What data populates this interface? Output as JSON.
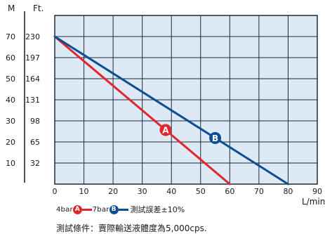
{
  "chart_data": {
    "type": "line",
    "left_axis_unit": "M",
    "right_axis_unit": "Ft.",
    "xlabel": "L/min",
    "x_ticks": [
      0,
      10,
      20,
      30,
      40,
      50,
      60,
      70,
      80,
      90
    ],
    "xlim": [
      0,
      90
    ],
    "y_ticks_m": [
      10,
      20,
      30,
      40,
      50,
      60,
      70
    ],
    "y_ticks_ft": [
      32,
      65,
      98,
      131,
      164,
      197,
      230
    ],
    "ylim": [
      0,
      80
    ],
    "grid": true,
    "legend_position": "bottom",
    "series": [
      {
        "label": "A",
        "pressure": "4bar",
        "color": "#e1262c",
        "x": [
          0,
          60
        ],
        "y": [
          70,
          0
        ],
        "marker_x": 38
      },
      {
        "label": "B",
        "pressure": "7bar",
        "color": "#0b4f93",
        "x": [
          0,
          80
        ],
        "y": [
          70,
          0
        ],
        "marker_x": 55
      }
    ],
    "tolerance_note": "測試誤差±10%",
    "footnote": "測試條件：賣際輸送液體度為5,000cps."
  },
  "colors": {
    "plot_background": "#ddeaf6",
    "grid": "#1f2a3a"
  }
}
